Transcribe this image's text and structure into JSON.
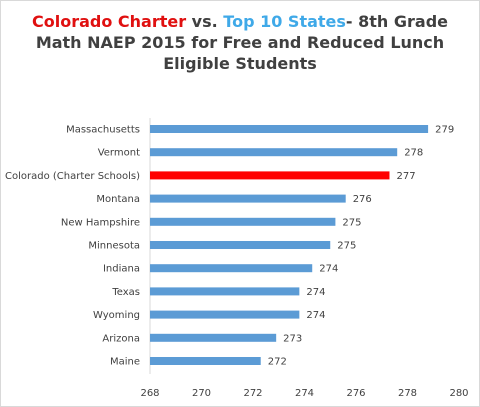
{
  "chart_data": {
    "type": "bar",
    "orientation": "horizontal",
    "title_parts": {
      "p1": "Colorado Charter",
      "p2": " vs. ",
      "p3": "Top 10 States",
      "p4": "- 8th Grade",
      "line2": "Math NAEP 2015 for Free and Reduced Lunch",
      "line3": "Eligible Students"
    },
    "categories": [
      "Massachusetts",
      "Vermont",
      "Colorado (Charter Schools)",
      "Montana",
      "New Hampshire",
      "Minnesota",
      "Indiana",
      "Texas",
      "Wyoming",
      "Arizona",
      "Maine"
    ],
    "values": [
      278.8,
      277.6,
      277.3,
      275.6,
      275.2,
      275.0,
      274.3,
      273.8,
      273.8,
      272.9,
      272.3
    ],
    "value_labels": [
      "279",
      "278",
      "277",
      "276",
      "275",
      "275",
      "274",
      "274",
      "274",
      "273",
      "272"
    ],
    "highlight_index": 2,
    "colors": {
      "bar": "#5b9bd5",
      "highlight": "#ff0000",
      "title_red": "#e01010",
      "title_blue": "#3fa9e8",
      "text": "#404040",
      "axis": "#d9d9d9"
    },
    "xlim": [
      268,
      280
    ],
    "xticks": [
      268,
      270,
      272,
      274,
      276,
      278,
      280
    ],
    "xtick_labels": [
      "268",
      "270",
      "272",
      "274",
      "276",
      "278",
      "280"
    ],
    "grid": false,
    "legend": "none"
  }
}
